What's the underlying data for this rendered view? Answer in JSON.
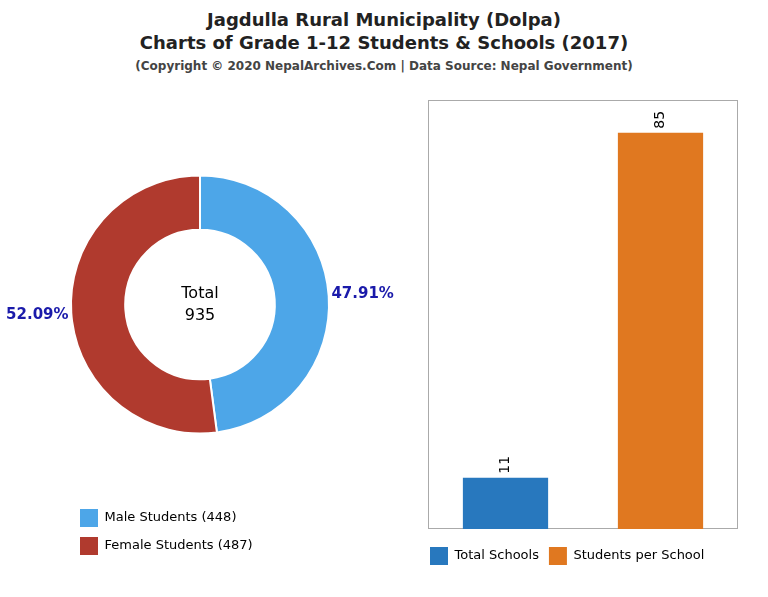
{
  "chart_data": [
    {
      "type": "doughnut",
      "title": [
        "Jagdulla Rural Municipality (Dolpa)",
        "Charts of Grade 1-12 Students & Schools (2017)"
      ],
      "subtitle": "(Copyright © 2020 NepalArchives.Com | Data Source: Nepal Government)",
      "categories": [
        "Male Students (448)",
        "Female Students (487)"
      ],
      "values": [
        47.91,
        52.09
      ],
      "value_labels": [
        "47.91%",
        "52.09%"
      ],
      "data_labels": true,
      "colors": [
        "#4da6e8",
        "#b03a2e"
      ],
      "annotations": [
        "Total",
        "935"
      ],
      "legend": "bottom"
    },
    {
      "type": "bar",
      "categories": [
        "Total Schools",
        "Students per School"
      ],
      "values": [
        11,
        85
      ],
      "colors": [
        "#2878be",
        "#e07820"
      ],
      "ylim": [
        0,
        92
      ],
      "data_labels": true,
      "tick_labels": false,
      "grid": false,
      "legend": "bottom"
    }
  ]
}
